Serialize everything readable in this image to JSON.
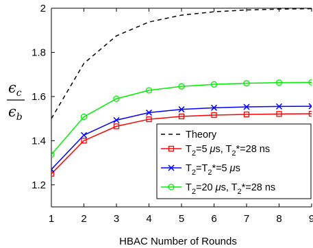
{
  "chart_data": {
    "type": "line",
    "xlabel": "HBAC Number of Rounds",
    "ylabel": {
      "num": "ϵ",
      "num_sub": "c",
      "den": "ϵ",
      "den_sub": "b"
    },
    "xlim": [
      1,
      9
    ],
    "ylim": [
      1.1,
      2.0
    ],
    "x": [
      1,
      2,
      3,
      4,
      5,
      6,
      7,
      8,
      9
    ],
    "xticks": [
      1,
      2,
      3,
      4,
      5,
      6,
      7,
      8,
      9
    ],
    "xtick_labels": [
      "1",
      "2",
      "3",
      "4",
      "5",
      "6",
      "7",
      "8",
      "9"
    ],
    "yticks": [
      1.2,
      1.4,
      1.6,
      1.8,
      2.0
    ],
    "ytick_labels": [
      "1.2",
      "1.4",
      "1.6",
      "1.8",
      "2"
    ],
    "grid": false,
    "legend_position": "bottom-right",
    "series": [
      {
        "name": "Theory",
        "legend_parts": [
          {
            "t": "Theory",
            "sub": false
          }
        ],
        "color": "#000000",
        "dash": "6,5",
        "marker": "none",
        "values": [
          1.5,
          1.75,
          1.875,
          1.9375,
          1.96875,
          1.984,
          1.992,
          1.996,
          1.998
        ]
      },
      {
        "name": "T2=5 μs, T2*=28 ns",
        "legend_parts": [
          {
            "t": "T",
            "sub": false
          },
          {
            "t": "2",
            "sub": true
          },
          {
            "t": "=5 ",
            "sub": false
          },
          {
            "t": "μ",
            "sub": false,
            "italic": true
          },
          {
            "t": "s, T",
            "sub": false
          },
          {
            "t": "2",
            "sub": true
          },
          {
            "t": "*=28 ns",
            "sub": false
          }
        ],
        "color": "#ff0000",
        "dash": "",
        "marker": "square",
        "values": [
          1.25,
          1.4,
          1.465,
          1.497,
          1.51,
          1.516,
          1.519,
          1.521,
          1.522
        ]
      },
      {
        "name": "T2=T2*=5 μs",
        "legend_parts": [
          {
            "t": "T",
            "sub": false
          },
          {
            "t": "2",
            "sub": true
          },
          {
            "t": "=T",
            "sub": false
          },
          {
            "t": "2",
            "sub": true
          },
          {
            "t": "*=5 ",
            "sub": false
          },
          {
            "t": "μ",
            "sub": false,
            "italic": true
          },
          {
            "t": "s",
            "sub": false
          }
        ],
        "color": "#0000ff",
        "dash": "",
        "marker": "x",
        "values": [
          1.27,
          1.425,
          1.493,
          1.527,
          1.542,
          1.549,
          1.553,
          1.555,
          1.556
        ]
      },
      {
        "name": "T2=20 μs, T2*=28 ns",
        "legend_parts": [
          {
            "t": "T",
            "sub": false
          },
          {
            "t": "2",
            "sub": true
          },
          {
            "t": "=20 ",
            "sub": false
          },
          {
            "t": "μ",
            "sub": false,
            "italic": true
          },
          {
            "t": "s, T",
            "sub": false
          },
          {
            "t": "2",
            "sub": true
          },
          {
            "t": "*=28 ns",
            "sub": false
          }
        ],
        "color": "#00ee00",
        "dash": "",
        "marker": "circle",
        "values": [
          1.337,
          1.508,
          1.59,
          1.628,
          1.646,
          1.655,
          1.66,
          1.663,
          1.664
        ]
      }
    ]
  }
}
